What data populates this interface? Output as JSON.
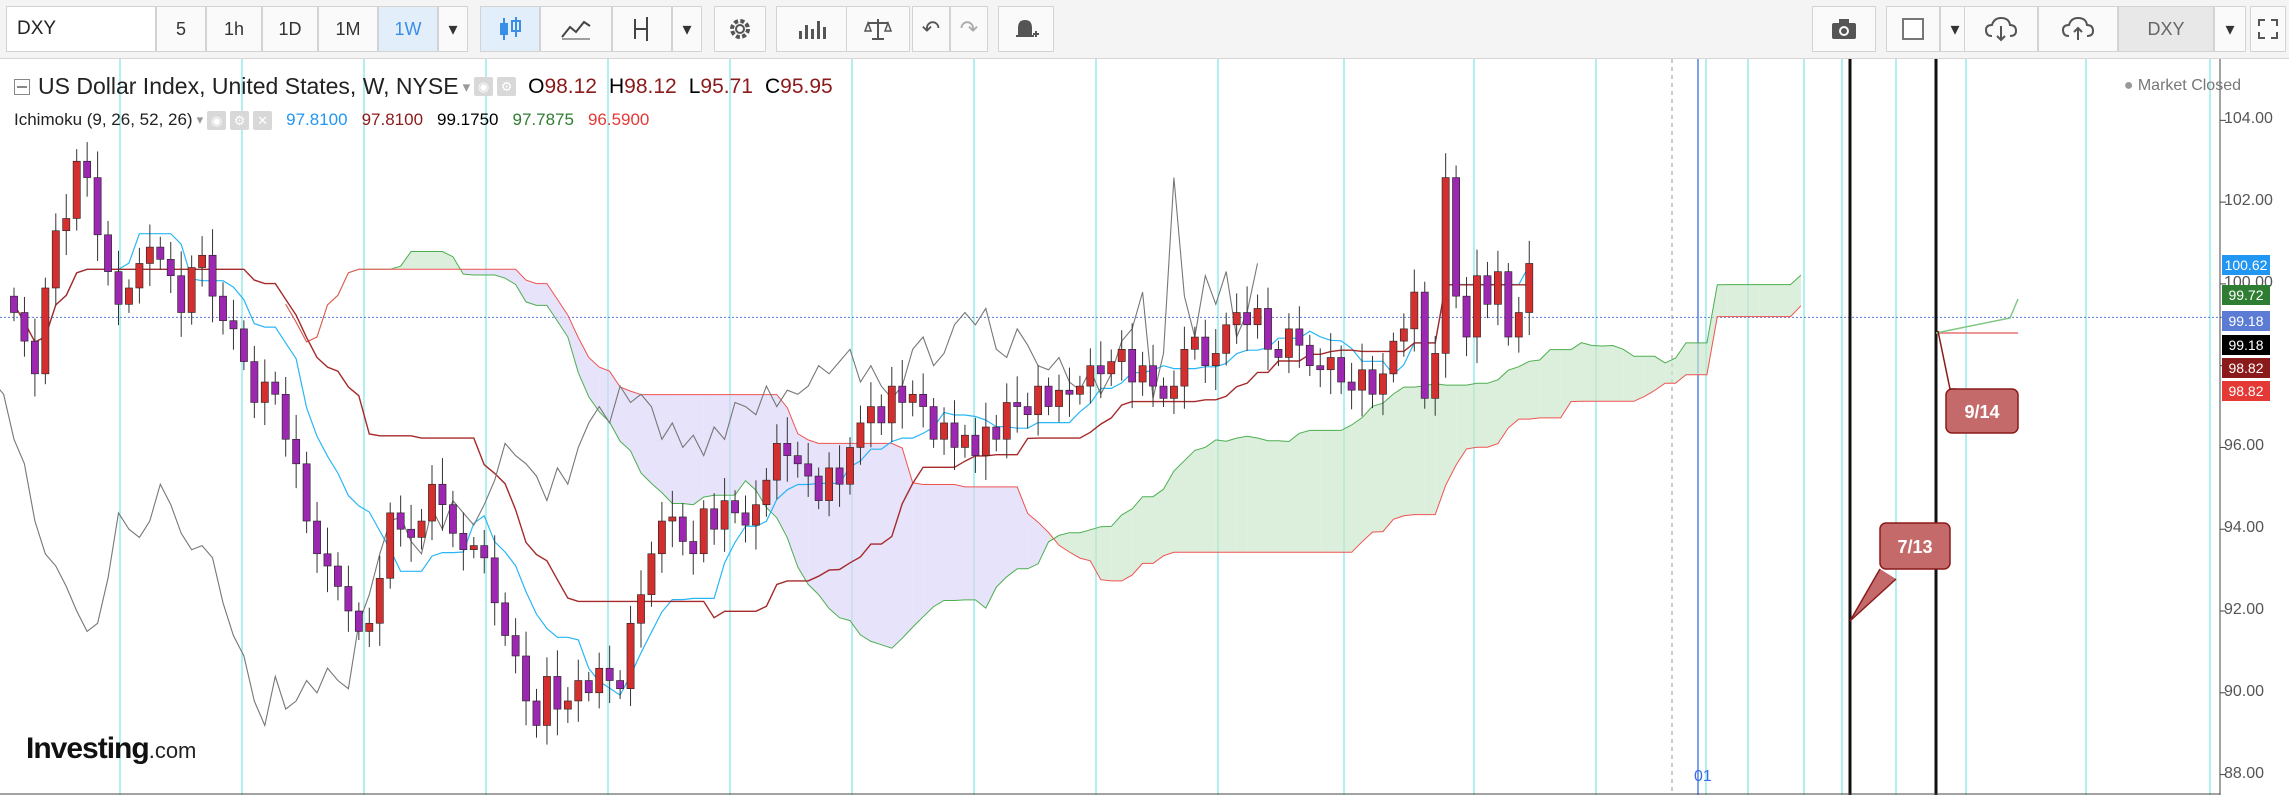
{
  "toolbar": {
    "symbol": "DXY",
    "intervals": [
      "5",
      "1h",
      "1D",
      "1M",
      "1W"
    ],
    "active_interval": "1W",
    "symbol_right": "DXY"
  },
  "legend": {
    "title": "US Dollar Index, United States, W, NYSE",
    "open_label": "O",
    "open": "98.12",
    "high_label": "H",
    "high": "98.12",
    "low_label": "L",
    "low": "95.71",
    "close_label": "C",
    "close": "95.95",
    "indicator": "Ichimoku (9, 26, 52, 26)",
    "indicator_values": [
      "97.8100",
      "97.8100",
      "99.1750",
      "97.7875",
      "96.5900"
    ],
    "indicator_colors": [
      "#2196f3",
      "#8b1a1a",
      "#000000",
      "#2e7d32",
      "#e53935"
    ]
  },
  "market_status": "Market Closed",
  "brand": {
    "name": "Investing",
    "suffix": ".com"
  },
  "chart_data": {
    "type": "candlestick",
    "title": "US Dollar Index, United States, W, NYSE",
    "ylim": [
      87.5,
      105.5
    ],
    "y_ticks": [
      "104.00",
      "102.00",
      "100.00",
      "98.00",
      "96.00",
      "94.00",
      "92.00",
      "90.00",
      "88.00"
    ],
    "x_label_bottom": "01",
    "price_labels": [
      {
        "value": "100.62",
        "color": "#2196f3"
      },
      {
        "value": "99.72",
        "color": "#2e7d32"
      },
      {
        "value": "99.18",
        "color": "#5b7bd5"
      },
      {
        "value": "99.18",
        "color": "#000000"
      },
      {
        "value": "98.82",
        "color": "#8b1a1a"
      },
      {
        "value": "98.82",
        "color": "#e53935"
      }
    ],
    "annotations": [
      {
        "text": "9/14",
        "color": "#c56a6a"
      },
      {
        "text": "7/13",
        "color": "#c56a6a"
      }
    ],
    "closes": [
      99.3,
      98.6,
      97.8,
      99.9,
      101.3,
      101.6,
      103.0,
      102.6,
      101.2,
      100.3,
      99.5,
      99.9,
      100.5,
      100.9,
      100.6,
      100.2,
      99.3,
      100.4,
      100.7,
      99.7,
      99.1,
      98.9,
      98.1,
      97.1,
      97.6,
      97.3,
      96.2,
      95.6,
      94.2,
      93.4,
      93.1,
      92.6,
      92.0,
      91.5,
      91.7,
      92.8,
      94.4,
      94.0,
      93.8,
      94.2,
      95.1,
      94.6,
      93.9,
      93.5,
      93.6,
      93.3,
      92.2,
      91.4,
      90.9,
      89.8,
      89.2,
      90.4,
      89.6,
      89.8,
      90.3,
      90.0,
      90.6,
      90.3,
      90.1,
      91.7,
      92.4,
      93.4,
      94.2,
      94.3,
      93.7,
      93.4,
      94.5,
      94.0,
      94.7,
      94.4,
      94.1,
      94.6,
      95.2,
      96.1,
      95.8,
      95.6,
      95.3,
      94.7,
      95.5,
      95.1,
      96.0,
      96.6,
      97.0,
      96.6,
      97.5,
      97.1,
      97.3,
      97.0,
      96.2,
      96.6,
      96.0,
      96.3,
      95.8,
      96.5,
      96.2,
      97.1,
      97.0,
      96.8,
      97.5,
      97.0,
      97.4,
      97.3,
      97.5,
      98.0,
      97.8,
      98.1,
      98.4,
      97.6,
      98.0,
      97.5,
      97.2,
      97.5,
      98.4,
      98.7,
      98.0,
      98.3,
      99.0,
      99.3,
      99.0,
      99.4,
      98.4,
      98.2,
      98.9,
      98.5,
      98.0,
      97.9,
      98.2,
      97.6,
      97.4,
      97.9,
      97.3,
      97.8,
      98.6,
      98.9,
      99.8,
      97.2,
      98.3,
      102.6,
      99.7,
      98.7,
      100.2,
      99.5,
      100.3,
      98.7,
      99.3,
      100.5
    ]
  }
}
